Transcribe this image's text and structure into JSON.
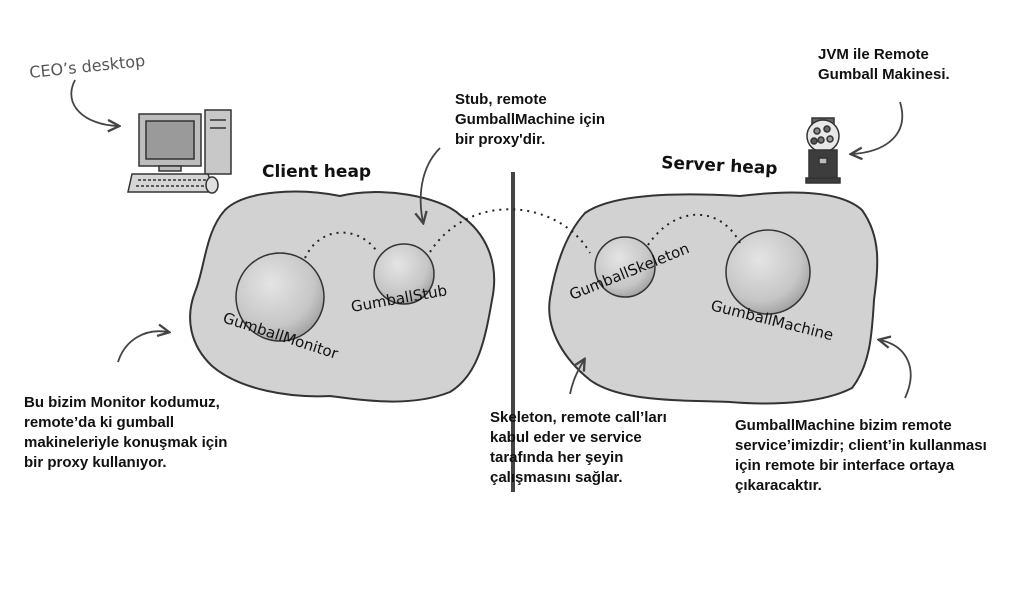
{
  "labels": {
    "ceo_desktop": "CEO’s desktop",
    "client_heap": "Client heap",
    "server_heap": "Server heap",
    "gumball_monitor": "GumballMonitor",
    "gumball_stub": "GumballStub",
    "gumball_skeleton": "GumballSkeleton",
    "gumball_machine": "GumballMachine"
  },
  "notes": {
    "stub": "Stub, remote\nGumballMachine için\nbir proxy'dir.",
    "jvm": "JVM ile Remote\nGumball Makinesi.",
    "monitor": "Bu bizim Monitor kodumuz,\nremote’da ki gumball\nmakineleriyle konuşmak için\nbir proxy kullanıyor.",
    "skeleton": "Skeleton, remote call’ları\nkabul eder ve service\ntarafında her şeyin\nçalışmasını sağlar.",
    "machine": "GumballMachine bizim remote\nservice’imizdir; client’in kullanması\niçin remote bir interface ortaya\nçıkaracaktır."
  },
  "colors": {
    "heap_fill": "#d2d2d2",
    "outline": "#333333",
    "sphere": "#c4c4c4"
  }
}
